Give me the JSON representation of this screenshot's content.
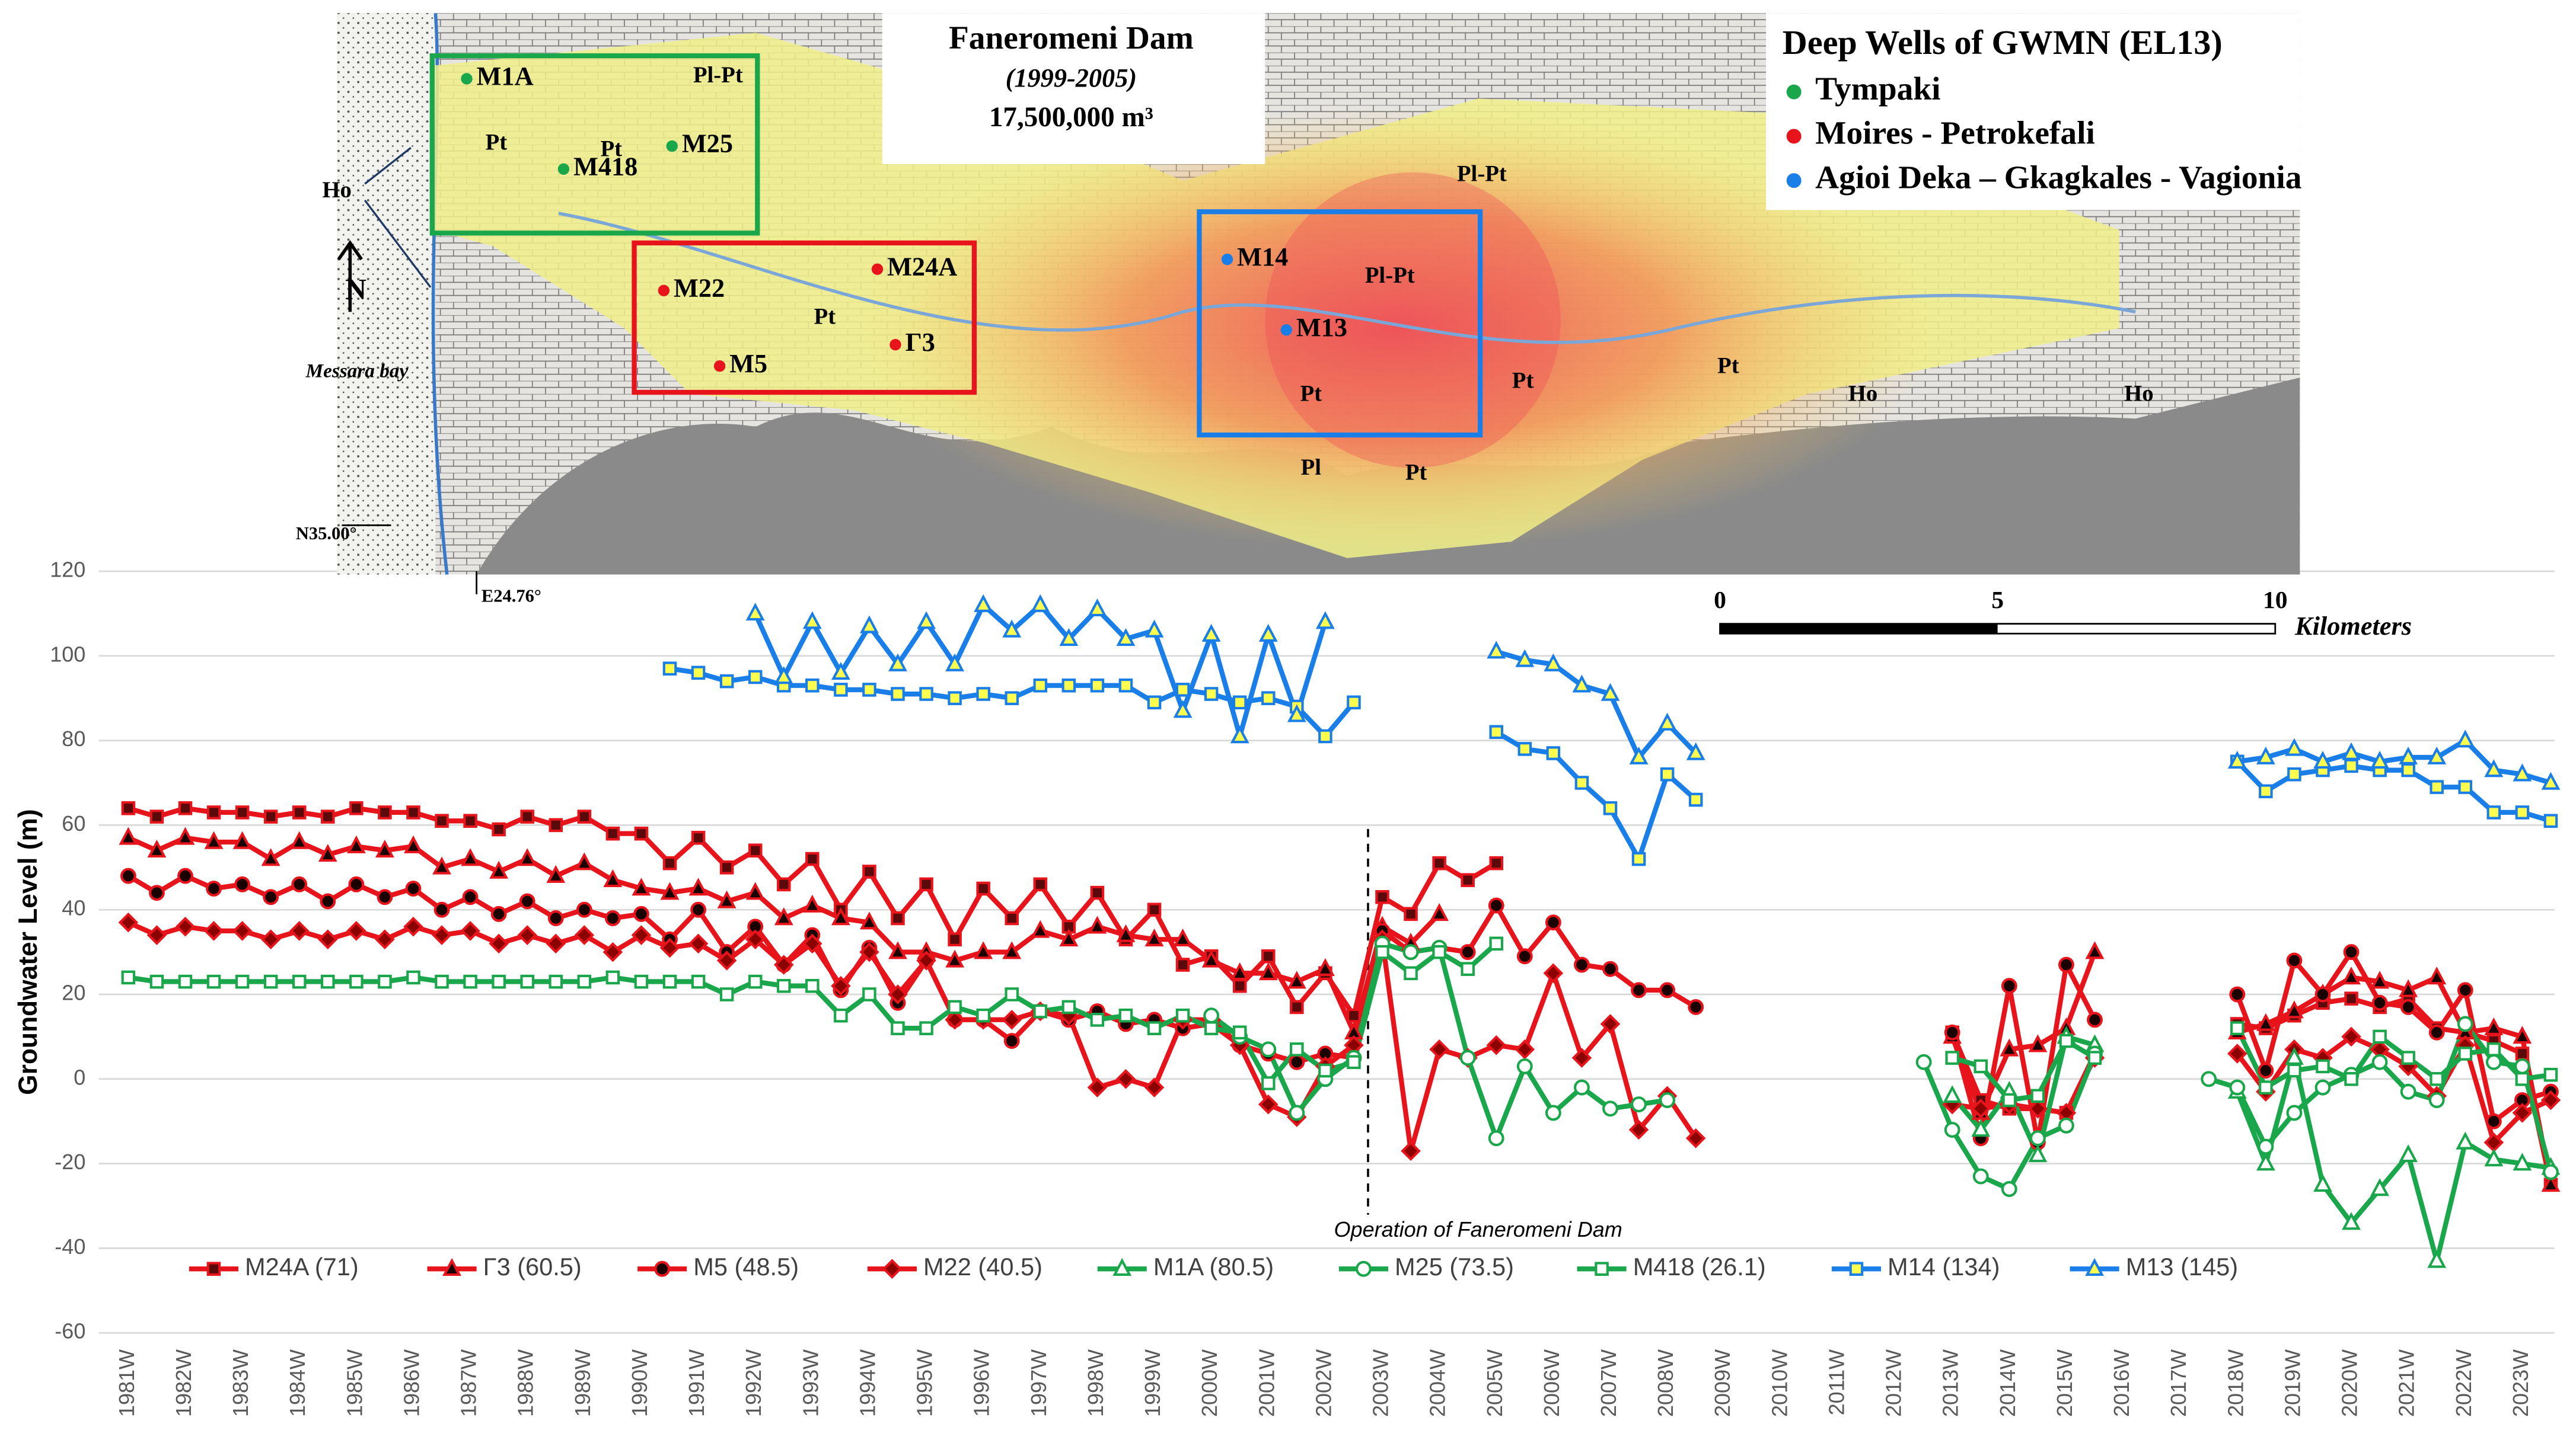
{
  "chart_data": {
    "type": "line",
    "ylabel": "Groundwater Level (m)",
    "annotation": "Operation of Faneromeni Dam",
    "ylim": [
      -60,
      120
    ],
    "yticks": [
      -60,
      -40,
      -20,
      0,
      20,
      40,
      60,
      80,
      100,
      120
    ],
    "grid": true,
    "categories": [
      "1981W",
      null,
      "1982W",
      null,
      "1983W",
      null,
      "1984W",
      null,
      "1985W",
      null,
      "1986W",
      null,
      "1987W",
      null,
      "1988W",
      null,
      "1989W",
      null,
      "1990W",
      null,
      "1991W",
      null,
      "1992W",
      null,
      "1993W",
      null,
      "1994W",
      null,
      "1995W",
      null,
      "1996W",
      null,
      "1997W",
      null,
      "1998W",
      null,
      "1999W",
      null,
      "2000W",
      null,
      "2001W",
      null,
      "2002W",
      null,
      "2003W",
      null,
      "2004W",
      null,
      "2005W",
      null,
      "2006W",
      null,
      "2007W",
      null,
      "2008W",
      null,
      "2009W",
      null,
      "2010W",
      null,
      "2011W",
      null,
      "2012W",
      null,
      "2013W",
      null,
      "2014W",
      null,
      "2015W",
      null,
      "2016W",
      null,
      "2017W",
      null,
      "2018W",
      null,
      "2019W",
      null,
      "2020W",
      null,
      "2021W",
      null,
      "2022W",
      null,
      "2023W",
      null
    ],
    "series": [
      {
        "name": "M24A (71)",
        "color": "#e8141c",
        "marker": "square",
        "marker_fill": "#5a0a0a",
        "values": [
          64,
          62,
          64,
          63,
          63,
          62,
          63,
          62,
          64,
          63,
          63,
          61,
          61,
          59,
          62,
          60,
          62,
          58,
          58,
          51,
          57,
          50,
          54,
          46,
          52,
          40,
          49,
          38,
          46,
          33,
          45,
          38,
          46,
          36,
          44,
          33,
          40,
          27,
          29,
          22,
          29,
          17,
          25,
          15,
          43,
          39,
          51,
          47,
          51,
          null,
          null,
          null,
          null,
          null,
          null,
          null,
          null,
          null,
          null,
          null,
          null,
          null,
          null,
          null,
          11,
          -5,
          -7,
          -7,
          -8,
          6,
          null,
          null,
          null,
          null,
          13,
          12,
          15,
          18,
          19,
          17,
          19,
          12,
          11,
          9,
          6,
          -25
        ]
      },
      {
        "name": "Γ3 (60.5)",
        "color": "#e8141c",
        "marker": "triangle",
        "marker_fill": "#1a0000",
        "values": [
          57,
          54,
          57,
          56,
          56,
          52,
          56,
          53,
          55,
          54,
          55,
          50,
          52,
          49,
          52,
          48,
          51,
          47,
          45,
          44,
          45,
          42,
          44,
          38,
          41,
          38,
          37,
          30,
          30,
          28,
          30,
          30,
          35,
          33,
          36,
          34,
          33,
          33,
          28,
          25,
          25,
          23,
          26,
          11,
          36,
          32,
          39,
          null,
          null,
          null,
          null,
          null,
          null,
          null,
          null,
          null,
          null,
          null,
          null,
          null,
          null,
          null,
          null,
          null,
          10,
          -8,
          7,
          8,
          12,
          30,
          null,
          null,
          null,
          null,
          11,
          13,
          16,
          20,
          24,
          23,
          21,
          24,
          11,
          12,
          10,
          -25
        ]
      },
      {
        "name": "M5 (48.5)",
        "color": "#e8141c",
        "marker": "circle",
        "marker_fill": "#1a0000",
        "values": [
          48,
          44,
          48,
          45,
          46,
          43,
          46,
          42,
          46,
          43,
          45,
          40,
          43,
          39,
          42,
          38,
          40,
          38,
          39,
          33,
          40,
          30,
          36,
          27,
          34,
          21,
          31,
          18,
          28,
          14,
          14,
          9,
          16,
          14,
          16,
          13,
          14,
          12,
          13,
          8,
          6,
          4,
          6,
          5,
          35,
          30,
          31,
          30,
          41,
          29,
          37,
          27,
          26,
          21,
          21,
          17,
          null,
          null,
          null,
          null,
          null,
          null,
          null,
          null,
          11,
          -14,
          22,
          -15,
          27,
          14,
          null,
          null,
          null,
          null,
          20,
          2,
          28,
          20,
          30,
          18,
          17,
          11,
          21,
          -10,
          -5,
          -3
        ]
      },
      {
        "name": "M22 (40.5)",
        "color": "#e8141c",
        "marker": "diamond",
        "marker_fill": "#8b0000",
        "values": [
          37,
          34,
          36,
          35,
          35,
          33,
          35,
          33,
          35,
          33,
          36,
          34,
          35,
          32,
          34,
          32,
          34,
          30,
          34,
          31,
          32,
          28,
          33,
          27,
          32,
          22,
          30,
          20,
          28,
          14,
          14,
          14,
          16,
          15,
          -2,
          0,
          -2,
          14,
          14,
          8,
          -6,
          -9,
          3,
          8,
          33,
          -17,
          7,
          5,
          8,
          7,
          25,
          5,
          13,
          -12,
          -4,
          -14,
          null,
          null,
          null,
          null,
          null,
          null,
          null,
          null,
          -6,
          -7,
          -6,
          -7,
          -8,
          5,
          null,
          null,
          null,
          null,
          6,
          -3,
          7,
          5,
          10,
          7,
          3,
          -4,
          8,
          -15,
          -8,
          -5
        ]
      },
      {
        "name": "M1A (80.5)",
        "color": "#1aa64a",
        "marker": "triangle",
        "marker_fill": "#ffffff",
        "values": [
          null,
          null,
          null,
          null,
          null,
          null,
          null,
          null,
          null,
          null,
          null,
          null,
          null,
          null,
          null,
          null,
          null,
          null,
          null,
          null,
          null,
          null,
          null,
          null,
          null,
          null,
          null,
          null,
          null,
          null,
          null,
          null,
          null,
          null,
          null,
          null,
          null,
          null,
          null,
          null,
          null,
          null,
          null,
          null,
          null,
          null,
          null,
          null,
          null,
          null,
          null,
          null,
          null,
          null,
          null,
          null,
          null,
          null,
          null,
          null,
          null,
          null,
          null,
          null,
          -4,
          -12,
          -3,
          -18,
          10,
          8,
          null,
          null,
          null,
          null,
          -3,
          -20,
          5,
          -25,
          -34,
          -26,
          -18,
          -43,
          -15,
          -19,
          -20,
          -21
        ]
      },
      {
        "name": "M25 (73.5)",
        "color": "#1aa64a",
        "marker": "circle",
        "marker_fill": "#ffffff",
        "values": [
          null,
          null,
          null,
          null,
          null,
          null,
          null,
          null,
          null,
          null,
          null,
          null,
          null,
          null,
          null,
          null,
          null,
          null,
          null,
          null,
          null,
          null,
          null,
          null,
          null,
          null,
          null,
          null,
          null,
          null,
          null,
          null,
          null,
          null,
          null,
          null,
          null,
          null,
          15,
          10,
          7,
          -8,
          0,
          5,
          32,
          30,
          31,
          5,
          -14,
          3,
          -8,
          -2,
          -7,
          -6,
          -5,
          null,
          null,
          null,
          null,
          null,
          null,
          null,
          null,
          4,
          -12,
          -23,
          -26,
          -14,
          -11,
          6,
          null,
          null,
          null,
          0,
          -2,
          -16,
          -8,
          -2,
          1,
          4,
          -3,
          -5,
          13,
          4,
          3,
          -22
        ]
      },
      {
        "name": "M418 (26.1)",
        "color": "#1aa64a",
        "marker": "square",
        "marker_fill": "#ffffff",
        "values": [
          24,
          23,
          23,
          23,
          23,
          23,
          23,
          23,
          23,
          23,
          24,
          23,
          23,
          23,
          23,
          23,
          23,
          24,
          23,
          23,
          23,
          20,
          23,
          22,
          22,
          15,
          20,
          12,
          12,
          17,
          15,
          20,
          16,
          17,
          14,
          15,
          12,
          15,
          12,
          11,
          -1,
          7,
          2,
          4,
          30,
          25,
          30,
          26,
          32,
          null,
          null,
          null,
          null,
          null,
          null,
          null,
          null,
          null,
          null,
          null,
          null,
          null,
          null,
          null,
          5,
          3,
          -5,
          -4,
          9,
          5,
          null,
          null,
          null,
          null,
          12,
          -2,
          2,
          3,
          0,
          10,
          5,
          0,
          6,
          7,
          0,
          1
        ]
      },
      {
        "name": "M14 (134)",
        "color": "#1a7ee8",
        "marker": "square",
        "marker_fill": "#ffff4d",
        "values": [
          null,
          null,
          null,
          null,
          null,
          null,
          null,
          null,
          null,
          null,
          null,
          null,
          null,
          null,
          null,
          null,
          null,
          null,
          null,
          97,
          96,
          94,
          95,
          93,
          93,
          92,
          92,
          91,
          91,
          90,
          91,
          90,
          93,
          93,
          93,
          93,
          89,
          92,
          91,
          89,
          90,
          88,
          81,
          89,
          null,
          null,
          null,
          null,
          82,
          78,
          77,
          70,
          64,
          52,
          72,
          66,
          null,
          null,
          null,
          null,
          null,
          null,
          null,
          null,
          null,
          null,
          null,
          null,
          null,
          null,
          null,
          null,
          null,
          null,
          75,
          68,
          72,
          73,
          74,
          73,
          73,
          69,
          69,
          63,
          63,
          61
        ]
      },
      {
        "name": "M13 (145)",
        "color": "#1a7ee8",
        "marker": "triangle",
        "marker_fill": "#ffff4d",
        "values": [
          null,
          null,
          null,
          null,
          null,
          null,
          null,
          null,
          null,
          null,
          null,
          null,
          null,
          null,
          null,
          null,
          null,
          null,
          null,
          null,
          null,
          null,
          110,
          95,
          108,
          96,
          107,
          98,
          108,
          98,
          112,
          106,
          112,
          104,
          111,
          104,
          106,
          87,
          105,
          81,
          105,
          86,
          108,
          null,
          null,
          null,
          null,
          null,
          101,
          99,
          98,
          93,
          91,
          76,
          84,
          77,
          null,
          null,
          null,
          null,
          null,
          null,
          null,
          null,
          null,
          null,
          null,
          null,
          null,
          null,
          null,
          null,
          null,
          null,
          75,
          76,
          78,
          75,
          77,
          75,
          76,
          76,
          80,
          73,
          72,
          70
        ]
      }
    ]
  },
  "map": {
    "title": "Faneromeni Dam",
    "period": "(1999-2005)",
    "volume": "17,500,000 m³",
    "legend_title": "Deep Wells of GWMN (EL13)",
    "groups": [
      {
        "name": "Tympaki",
        "color": "#1aa64a",
        "wells": [
          "M1A",
          "M25",
          "M418"
        ]
      },
      {
        "name": "Moires - Petrokefali",
        "color": "#e8141c",
        "wells": [
          "M22",
          "M24A",
          "Γ3",
          "M5"
        ]
      },
      {
        "name": "Agioi Deka – Gkagkales - Vagionia",
        "color": "#1a7ee8",
        "wells": [
          "M14",
          "M13"
        ]
      }
    ],
    "geology": [
      "Pl-Pt",
      "Pt",
      "Pt",
      "Ho",
      "Pt",
      "Pt",
      "Pl-Pt",
      "Pl-Pt",
      "Pt",
      "Pt",
      "Pt",
      "Ho",
      "Ho",
      "Pl"
    ],
    "north": "N",
    "bay": "Messara bay",
    "lat": "N35.00°",
    "lon": "E24.76°",
    "scale": {
      "ticks": [
        0,
        5,
        10
      ],
      "unit": "Kilometers"
    }
  }
}
